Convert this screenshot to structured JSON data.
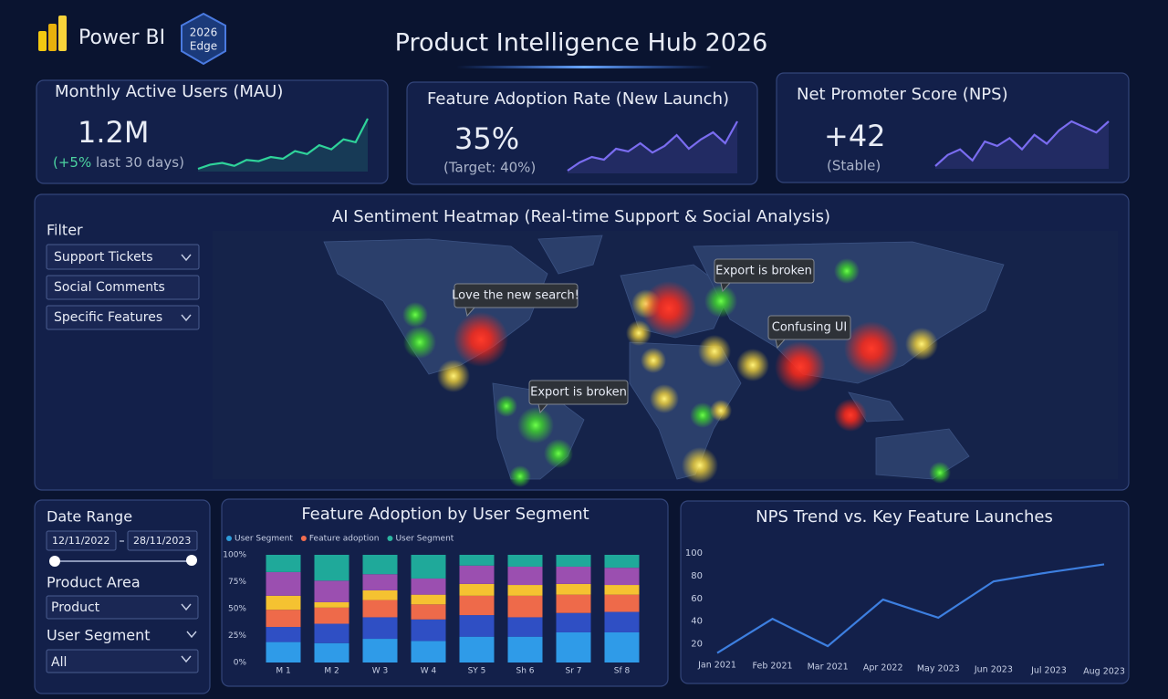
{
  "header": {
    "brand": "Power BI",
    "badge": [
      "2026",
      "Edge"
    ],
    "title": "Product Intelligence Hub 2026"
  },
  "kpis": [
    {
      "title": "Monthly Active Users (MAU)",
      "value": "1.2M",
      "delta": "(+5%",
      "note": " last 30 days)"
    },
    {
      "title": "Feature Adoption Rate (New Launch)",
      "value": "35%",
      "note": "(Target: 40%)"
    },
    {
      "title": "Net Promoter Score (NPS)",
      "value": "+42",
      "note": "(Stable)"
    }
  ],
  "heatmap": {
    "title": "AI Sentiment Heatmap (Real-time Support & Social Analysis)",
    "filter_label": "Filter",
    "filters": [
      "Support Tickets",
      "Social Comments",
      "Specific Features"
    ],
    "callouts": [
      "Love the new search!",
      "Export is broken",
      "Confusing UI",
      "Export is broken"
    ]
  },
  "filters": {
    "date_label": "Date Range",
    "date_from": "12/11/2022",
    "date_to": "28/11/2023",
    "product_label": "Product Area",
    "product_value": "Product",
    "segment_label": "User Segment",
    "segment_value": "All"
  },
  "chart_data": [
    {
      "type": "line",
      "color": "#2fd39a",
      "values": [
        5,
        12,
        15,
        10,
        20,
        18,
        25,
        22,
        35,
        30,
        45,
        38,
        55,
        50,
        90
      ]
    },
    {
      "type": "line",
      "color": "#7a6cf0",
      "values": [
        5,
        20,
        30,
        25,
        45,
        40,
        55,
        38,
        50,
        70,
        45,
        62,
        75,
        55,
        95
      ]
    },
    {
      "type": "line",
      "color": "#7a6cf0",
      "values": [
        40,
        50,
        55,
        45,
        62,
        58,
        65,
        55,
        68,
        60,
        72,
        80,
        75,
        70,
        80
      ]
    },
    {
      "type": "bar",
      "stacked": true,
      "title": "Feature Adoption by User Segment",
      "legend": [
        {
          "name": "User Segment",
          "color": "#2d9cdb"
        },
        {
          "name": "Feature adoption",
          "color": "#f26d4f"
        },
        {
          "name": "User Segment",
          "color": "#2bb5a0"
        }
      ],
      "categories": [
        "M 1",
        "M 2",
        "W 3",
        "W 4",
        "SY 5",
        "Sh 6",
        "Sr 7",
        "Sf 8"
      ],
      "series": [
        {
          "color": "#2f9be8",
          "values": [
            19,
            18,
            22,
            20,
            24,
            24,
            28,
            28
          ]
        },
        {
          "color": "#2f4fc4",
          "values": [
            14,
            18,
            20,
            20,
            20,
            18,
            18,
            19
          ]
        },
        {
          "color": "#ee6a4a",
          "values": [
            16,
            15,
            16,
            14,
            18,
            20,
            17,
            16
          ]
        },
        {
          "color": "#f5c231",
          "values": [
            13,
            5,
            9,
            9,
            11,
            10,
            10,
            9
          ]
        },
        {
          "color": "#9b4fb0",
          "values": [
            22,
            20,
            15,
            15,
            17,
            17,
            16,
            16
          ]
        },
        {
          "color": "#1fa99a",
          "values": [
            16,
            24,
            18,
            22,
            10,
            11,
            11,
            12
          ]
        }
      ],
      "ylim": [
        0,
        100
      ],
      "yticks": [
        {
          "value": 0,
          "label": "0%"
        },
        {
          "value": 25,
          "label": "25%"
        },
        {
          "value": 50,
          "label": "50%"
        },
        {
          "value": 75,
          "label": "75%"
        },
        {
          "value": 100,
          "label": "100%"
        }
      ]
    },
    {
      "type": "line",
      "title": "NPS Trend vs. Key Feature Launches",
      "categories": [
        "Jan 2021",
        "Feb 2021",
        "Mar 2021",
        "Apr 2022",
        "May 2023",
        "Jun 2023",
        "Jul 2023",
        "Aug 2023"
      ],
      "series": [
        {
          "color": "#3d7fe0",
          "values": [
            12,
            42,
            18,
            59,
            43,
            75,
            83,
            90
          ]
        }
      ],
      "ylim": [
        10,
        100
      ],
      "yticks": [
        20,
        40,
        60,
        80,
        100
      ]
    }
  ]
}
